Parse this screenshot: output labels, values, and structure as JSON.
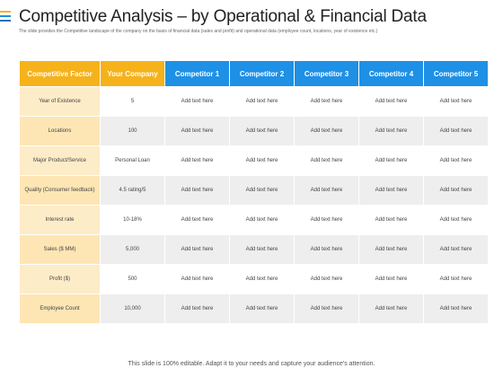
{
  "title": "Competitive Analysis – by Operational & Financial Data",
  "subtitle": "The slide provides the Competitive landscape of the company on the basis of financial data (sales and profit) and operational data (employee count, locations, year of existence etc.)",
  "table": {
    "headers": [
      "Competitive Factor",
      "Your Company",
      "Competitor 1",
      "Competitor 2",
      "Competitor 3",
      "Competitor 4",
      "Competitor 5"
    ],
    "rows": [
      {
        "factor": "Year of Existence",
        "company": "5",
        "c1": "Add text here",
        "c2": "Add text here",
        "c3": "Add text here",
        "c4": "Add text here",
        "c5": "Add text here"
      },
      {
        "factor": "Locations",
        "company": "100",
        "c1": "Add text here",
        "c2": "Add text here",
        "c3": "Add text here",
        "c4": "Add text here",
        "c5": "Add text here"
      },
      {
        "factor": "Major Product/Service",
        "company": "Personal Loan",
        "c1": "Add text here",
        "c2": "Add text here",
        "c3": "Add text here",
        "c4": "Add text here",
        "c5": "Add text here"
      },
      {
        "factor": "Quality (Consumer feedback)",
        "company": "4.5 rating/5",
        "c1": "Add text here",
        "c2": "Add text here",
        "c3": "Add text here",
        "c4": "Add text here",
        "c5": "Add text here"
      },
      {
        "factor": "Interest rate",
        "company": "10-18%",
        "c1": "Add text here",
        "c2": "Add text here",
        "c3": "Add text here",
        "c4": "Add text here",
        "c5": "Add text here"
      },
      {
        "factor": "Sales ($ MM)",
        "company": "5,000",
        "c1": "Add text here",
        "c2": "Add text here",
        "c3": "Add text here",
        "c4": "Add text here",
        "c5": "Add text here"
      },
      {
        "factor": "Profit ($)",
        "company": "500",
        "c1": "Add text here",
        "c2": "Add text here",
        "c3": "Add text here",
        "c4": "Add text here",
        "c5": "Add text here"
      },
      {
        "factor": "Employee Count",
        "company": "10,000",
        "c1": "Add text here",
        "c2": "Add text here",
        "c3": "Add text here",
        "c4": "Add text here",
        "c5": "Add text here"
      }
    ]
  },
  "footer": "This slide is 100% editable. Adapt it to your needs and capture your audience's attention.",
  "colors": {
    "accent_orange": "#f5b21b",
    "accent_blue": "#1e90e6",
    "accent_lines": [
      "#f5b21b",
      "#1e90e6",
      "#2c6fb7"
    ]
  }
}
